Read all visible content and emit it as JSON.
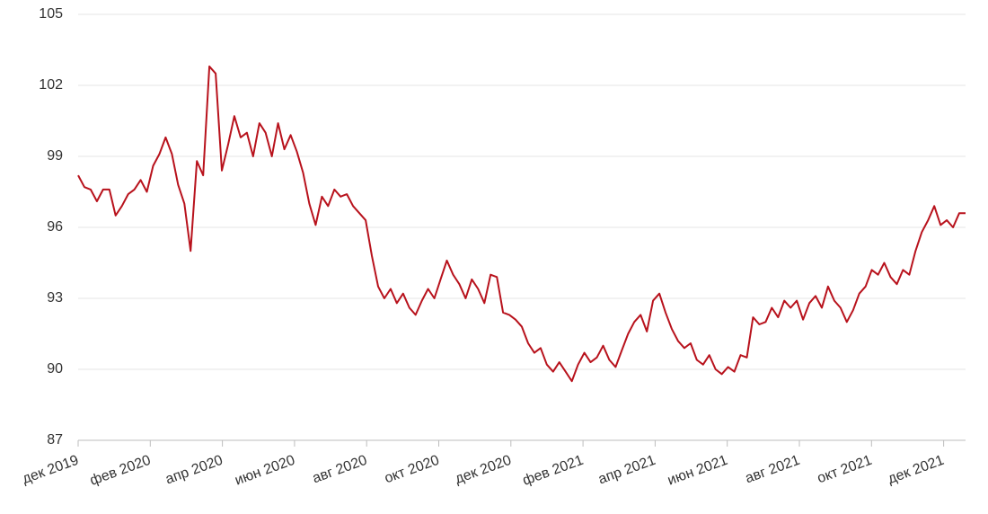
{
  "chart_data": {
    "type": "line",
    "color": "#b8121c",
    "grid": true,
    "ylim": [
      87,
      105
    ],
    "yticks": [
      87,
      90,
      93,
      96,
      99,
      102,
      105
    ],
    "xticks": [
      {
        "value": "2019-12",
        "label": "дек 2019"
      },
      {
        "value": "2020-02",
        "label": "фев 2020"
      },
      {
        "value": "2020-04",
        "label": "апр 2020"
      },
      {
        "value": "2020-06",
        "label": "июн 2020"
      },
      {
        "value": "2020-08",
        "label": "авг 2020"
      },
      {
        "value": "2020-10",
        "label": "окт 2020"
      },
      {
        "value": "2020-12",
        "label": "дек 2020"
      },
      {
        "value": "2021-02",
        "label": "фев 2021"
      },
      {
        "value": "2021-04",
        "label": "апр 2021"
      },
      {
        "value": "2021-06",
        "label": "июн 2021"
      },
      {
        "value": "2021-08",
        "label": "авг 2021"
      },
      {
        "value": "2021-10",
        "label": "окт 2021"
      },
      {
        "value": "2021-12",
        "label": "дек 2021"
      }
    ],
    "values": [
      98.2,
      97.7,
      97.6,
      97.1,
      97.6,
      97.6,
      96.5,
      96.9,
      97.4,
      97.6,
      98.0,
      97.5,
      98.6,
      99.1,
      99.8,
      99.1,
      97.8,
      97.0,
      95.0,
      98.8,
      98.2,
      102.8,
      102.5,
      98.4,
      99.5,
      100.7,
      99.8,
      100.0,
      99.0,
      100.4,
      100.0,
      99.0,
      100.4,
      99.3,
      99.9,
      99.2,
      98.3,
      97.0,
      96.1,
      97.3,
      96.9,
      97.6,
      97.3,
      97.4,
      96.9,
      96.6,
      96.3,
      94.8,
      93.5,
      93.0,
      93.4,
      92.8,
      93.2,
      92.6,
      92.3,
      92.9,
      93.4,
      93.0,
      93.8,
      94.6,
      94.0,
      93.6,
      93.0,
      93.8,
      93.4,
      92.8,
      94.0,
      93.9,
      92.4,
      92.3,
      92.1,
      91.8,
      91.1,
      90.7,
      90.9,
      90.2,
      89.9,
      90.3,
      89.9,
      89.5,
      90.2,
      90.7,
      90.3,
      90.5,
      91.0,
      90.4,
      90.1,
      90.8,
      91.5,
      92.0,
      92.3,
      91.6,
      92.9,
      93.2,
      92.4,
      91.7,
      91.2,
      90.9,
      91.1,
      90.4,
      90.2,
      90.6,
      90.0,
      89.8,
      90.1,
      89.9,
      90.6,
      90.5,
      92.2,
      91.9,
      92.0,
      92.6,
      92.2,
      92.9,
      92.6,
      92.9,
      92.1,
      92.8,
      93.1,
      92.6,
      93.5,
      92.9,
      92.6,
      92.0,
      92.5,
      93.2,
      93.5,
      94.2,
      94.0,
      94.5,
      93.9,
      93.6,
      94.2,
      94.0,
      95.0,
      95.8,
      96.3,
      96.9,
      96.1,
      96.3,
      96.0,
      96.6,
      96.6
    ]
  }
}
